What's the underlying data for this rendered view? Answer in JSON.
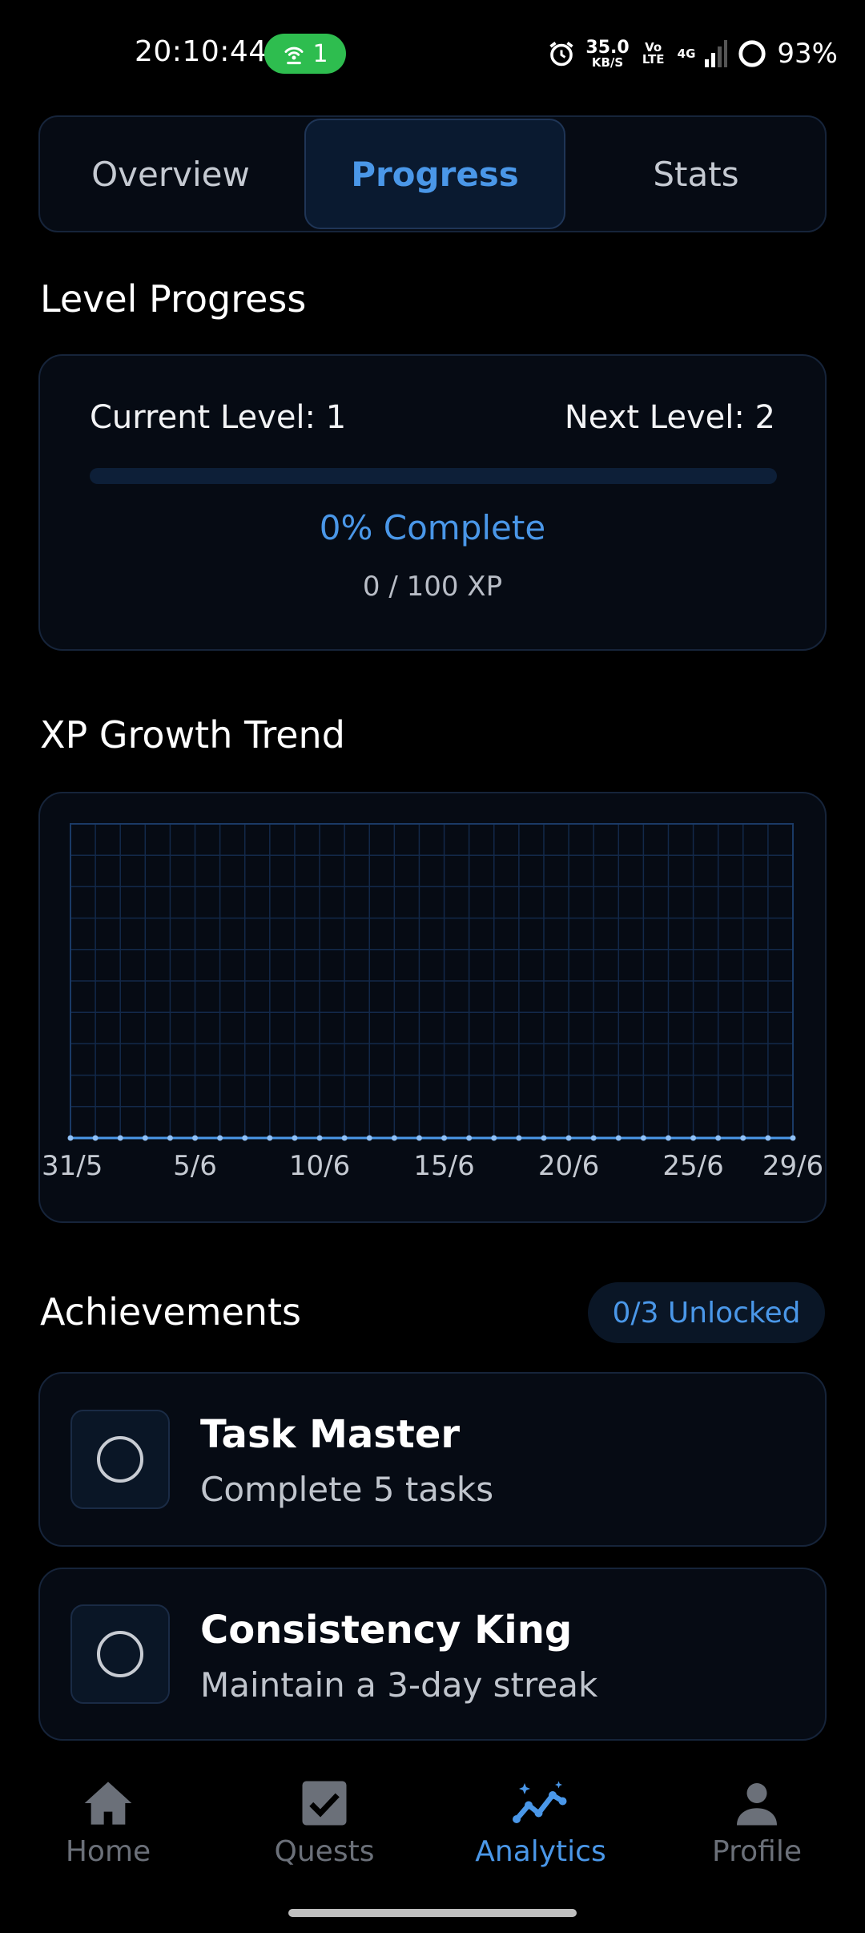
{
  "status_bar": {
    "time": "20:10:44",
    "hotspot_count": "1",
    "net_speed_value": "35.0",
    "net_speed_unit": "KB/S",
    "volte_label": "Vo LTE",
    "network_label": "4G",
    "battery": "93%"
  },
  "tabs": [
    {
      "label": "Overview",
      "active": false
    },
    {
      "label": "Progress",
      "active": true
    },
    {
      "label": "Stats",
      "active": false
    }
  ],
  "level_progress": {
    "title": "Level Progress",
    "current_level": "Current Level: 1",
    "next_level": "Next Level: 2",
    "progress_fraction": 0,
    "percent_text": "0% Complete",
    "xp_text": "0 / 100 XP"
  },
  "xp_trend": {
    "title": "XP Growth Trend"
  },
  "chart_data": {
    "type": "line",
    "title": "XP Growth Trend",
    "x_tick_labels": [
      "31/5",
      "5/6",
      "10/6",
      "15/6",
      "20/6",
      "25/6",
      "29/6"
    ],
    "x": [
      "31/5",
      "1/6",
      "2/6",
      "3/6",
      "4/6",
      "5/6",
      "6/6",
      "7/6",
      "8/6",
      "9/6",
      "10/6",
      "11/6",
      "12/6",
      "13/6",
      "14/6",
      "15/6",
      "16/6",
      "17/6",
      "18/6",
      "19/6",
      "20/6",
      "21/6",
      "22/6",
      "23/6",
      "24/6",
      "25/6",
      "26/6",
      "27/6",
      "28/6",
      "29/6"
    ],
    "series": [
      {
        "values": [
          0,
          0,
          0,
          0,
          0,
          0,
          0,
          0,
          0,
          0,
          0,
          0,
          0,
          0,
          0,
          0,
          0,
          0,
          0,
          0,
          0,
          0,
          0,
          0,
          0,
          0,
          0,
          0,
          0,
          0
        ]
      }
    ],
    "grid": true,
    "line_color": "#4a97e8",
    "grid_color": "#13294a"
  },
  "achievements": {
    "title": "Achievements",
    "unlocked_badge": "0/3 Unlocked",
    "items": [
      {
        "title": "Task Master",
        "description": "Complete 5 tasks",
        "icon": "circle-outline-icon"
      },
      {
        "title": "Consistency King",
        "description": "Maintain a 3-day streak",
        "icon": "circle-outline-icon"
      }
    ]
  },
  "bottom_nav": [
    {
      "label": "Home",
      "icon": "home-icon",
      "active": false
    },
    {
      "label": "Quests",
      "icon": "checkbox-icon",
      "active": false
    },
    {
      "label": "Analytics",
      "icon": "analytics-icon",
      "active": true
    },
    {
      "label": "Profile",
      "icon": "person-icon",
      "active": false
    }
  ],
  "colors": {
    "accent": "#4a97e8",
    "card_bg": "#060b14",
    "card_border": "#16243a",
    "hotspot_pill": "#2ebd4f"
  }
}
